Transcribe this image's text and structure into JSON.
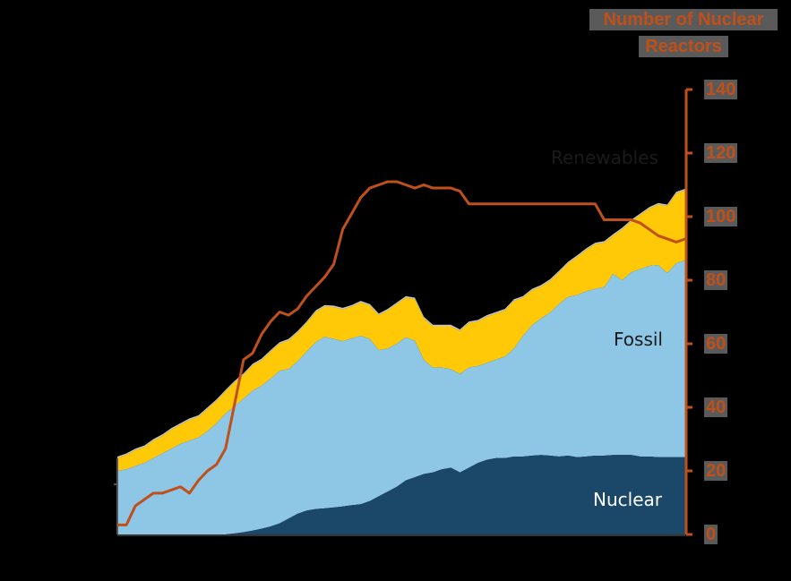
{
  "chart_data": {
    "type": "area",
    "title": "",
    "xlabel": "",
    "ylabel": "",
    "y2label": "Number of Nuclear Reactors",
    "y2_ticks": [
      0,
      20,
      40,
      60,
      80,
      100,
      120,
      140
    ],
    "y2lim": [
      0,
      140
    ],
    "grid": false,
    "legend": "inline labels",
    "x_index": [
      0,
      1,
      2,
      3,
      4,
      5,
      6,
      7,
      8,
      9,
      10,
      11,
      12,
      13,
      14,
      15,
      16,
      17,
      18,
      19,
      20,
      21,
      22,
      23,
      24,
      25,
      26,
      27,
      28,
      29,
      30,
      31,
      32,
      33,
      34,
      35,
      36,
      37,
      38,
      39,
      40,
      41,
      42,
      43,
      44,
      45,
      46,
      47,
      48,
      49,
      50,
      51,
      52,
      53,
      54,
      55,
      56,
      57,
      58,
      59,
      60,
      61,
      62,
      63
    ],
    "stacked_areas": [
      {
        "name": "Nuclear",
        "color": "#1b4769",
        "values": [
          0,
          0,
          0,
          0,
          0,
          0,
          0,
          0,
          0,
          0,
          0,
          0,
          0,
          0.3,
          0.7,
          1.2,
          1.8,
          2.5,
          3.5,
          5,
          6.5,
          7.5,
          8,
          8.2,
          8.5,
          8.8,
          9.2,
          9.5,
          10.5,
          12,
          13.5,
          15,
          17,
          18,
          19,
          19.5,
          20.5,
          21,
          19.5,
          21,
          22.5,
          23.5,
          24,
          24,
          24.5,
          24.5,
          24.8,
          25,
          24.8,
          24.5,
          24.8,
          24.3,
          24.5,
          24.8,
          24.8,
          25,
          25,
          25,
          24.5,
          24.5,
          24.3,
          24.3,
          24.3,
          24.3
        ]
      },
      {
        "name": "Fossil",
        "color": "#8ec6e6",
        "values": [
          20,
          20.5,
          21.5,
          22.5,
          24,
          25.5,
          27,
          28.5,
          29.5,
          30.5,
          32.5,
          35,
          38,
          40,
          42,
          44,
          45,
          46.5,
          48,
          47,
          48,
          50,
          52.5,
          54,
          53,
          52,
          52.5,
          53,
          51,
          46,
          45,
          45,
          45,
          43,
          36,
          33,
          32,
          31,
          31,
          31.5,
          30.5,
          30.5,
          31,
          32,
          34,
          38,
          41,
          43,
          45,
          48,
          50,
          51,
          52,
          52.5,
          53,
          57,
          55,
          57.5,
          59,
          60,
          60.5,
          58,
          61,
          62
        ]
      },
      {
        "name": "Renewables",
        "color": "#ffc907",
        "values": [
          4,
          4.5,
          5,
          5,
          5.5,
          5.5,
          6,
          6,
          6.5,
          6.5,
          7,
          7,
          7,
          7.5,
          7.5,
          8,
          8,
          8.5,
          8.5,
          9,
          9,
          9,
          9.5,
          9.5,
          10,
          10,
          10,
          10.5,
          10.5,
          11,
          12,
          12.5,
          12.5,
          13,
          13,
          13,
          13,
          13.5,
          13.5,
          14,
          14,
          14.5,
          14.5,
          14.5,
          15,
          12,
          11,
          10,
          10,
          10,
          10.5,
          12,
          13,
          14,
          14,
          12,
          16,
          16,
          17,
          18,
          19,
          21,
          22,
          22
        ]
      },
      {
        "name": "Other",
        "color": "#c8c8c8",
        "values": [
          0.5,
          0.5,
          0.5,
          0.5,
          0.5,
          0.5,
          0.5,
          0.5,
          0.5,
          0.5,
          0.5,
          0.5,
          0.5,
          0.5,
          0.5,
          0.5,
          0.5,
          0.5,
          0.5,
          0.5,
          0.5,
          0.5,
          0.5,
          0.5,
          0.5,
          0.5,
          0.5,
          0.5,
          0.5,
          0.5,
          0.5,
          0.5,
          0.5,
          0.5,
          0.5,
          0.5,
          0.5,
          0.5,
          0.5,
          0.5,
          0.5,
          0.5,
          0.5,
          0.5,
          0.5,
          0.5,
          0.5,
          0.5,
          0.5,
          0.5,
          0.5,
          0.5,
          0.5,
          0.5,
          0.5,
          0.5,
          0.5,
          0.5,
          0.5,
          0.5,
          0.5,
          0.5,
          0.5,
          0.5
        ]
      }
    ],
    "line_series": {
      "name": "Number of Nuclear Reactors",
      "axis": "right",
      "color": "#c0501a",
      "values": [
        3,
        3,
        9,
        11,
        13,
        13,
        14,
        15,
        13,
        17,
        20,
        22,
        27,
        41,
        55,
        57,
        63,
        67,
        70,
        69,
        71,
        75,
        78,
        81,
        85,
        96,
        101,
        106,
        109,
        110,
        111,
        111,
        110,
        109,
        110,
        109,
        109,
        109,
        108,
        104,
        104,
        104,
        104,
        104,
        104,
        104,
        104,
        104,
        104,
        104,
        104,
        104,
        104,
        104,
        99,
        99,
        99,
        99,
        98,
        96,
        94,
        93,
        92,
        93
      ]
    },
    "annotations": [
      "Renewables",
      "Fossil",
      "Nuclear"
    ]
  },
  "labels": {
    "axis_title_line1": "Number of Nuclear",
    "axis_title_line2": "Reactors",
    "renewables": "Renewables",
    "fossil": "Fossil",
    "nuclear": "Nuclear",
    "ticks": [
      "0",
      "20",
      "40",
      "60",
      "80",
      "100",
      "120",
      "140"
    ]
  },
  "colors": {
    "background": "#000000",
    "nuclear": "#1b4769",
    "fossil": "#8ec6e6",
    "renewables": "#ffc907",
    "other": "#c8c8c8",
    "reactors": "#c0501a",
    "axis_left": "#555555"
  }
}
